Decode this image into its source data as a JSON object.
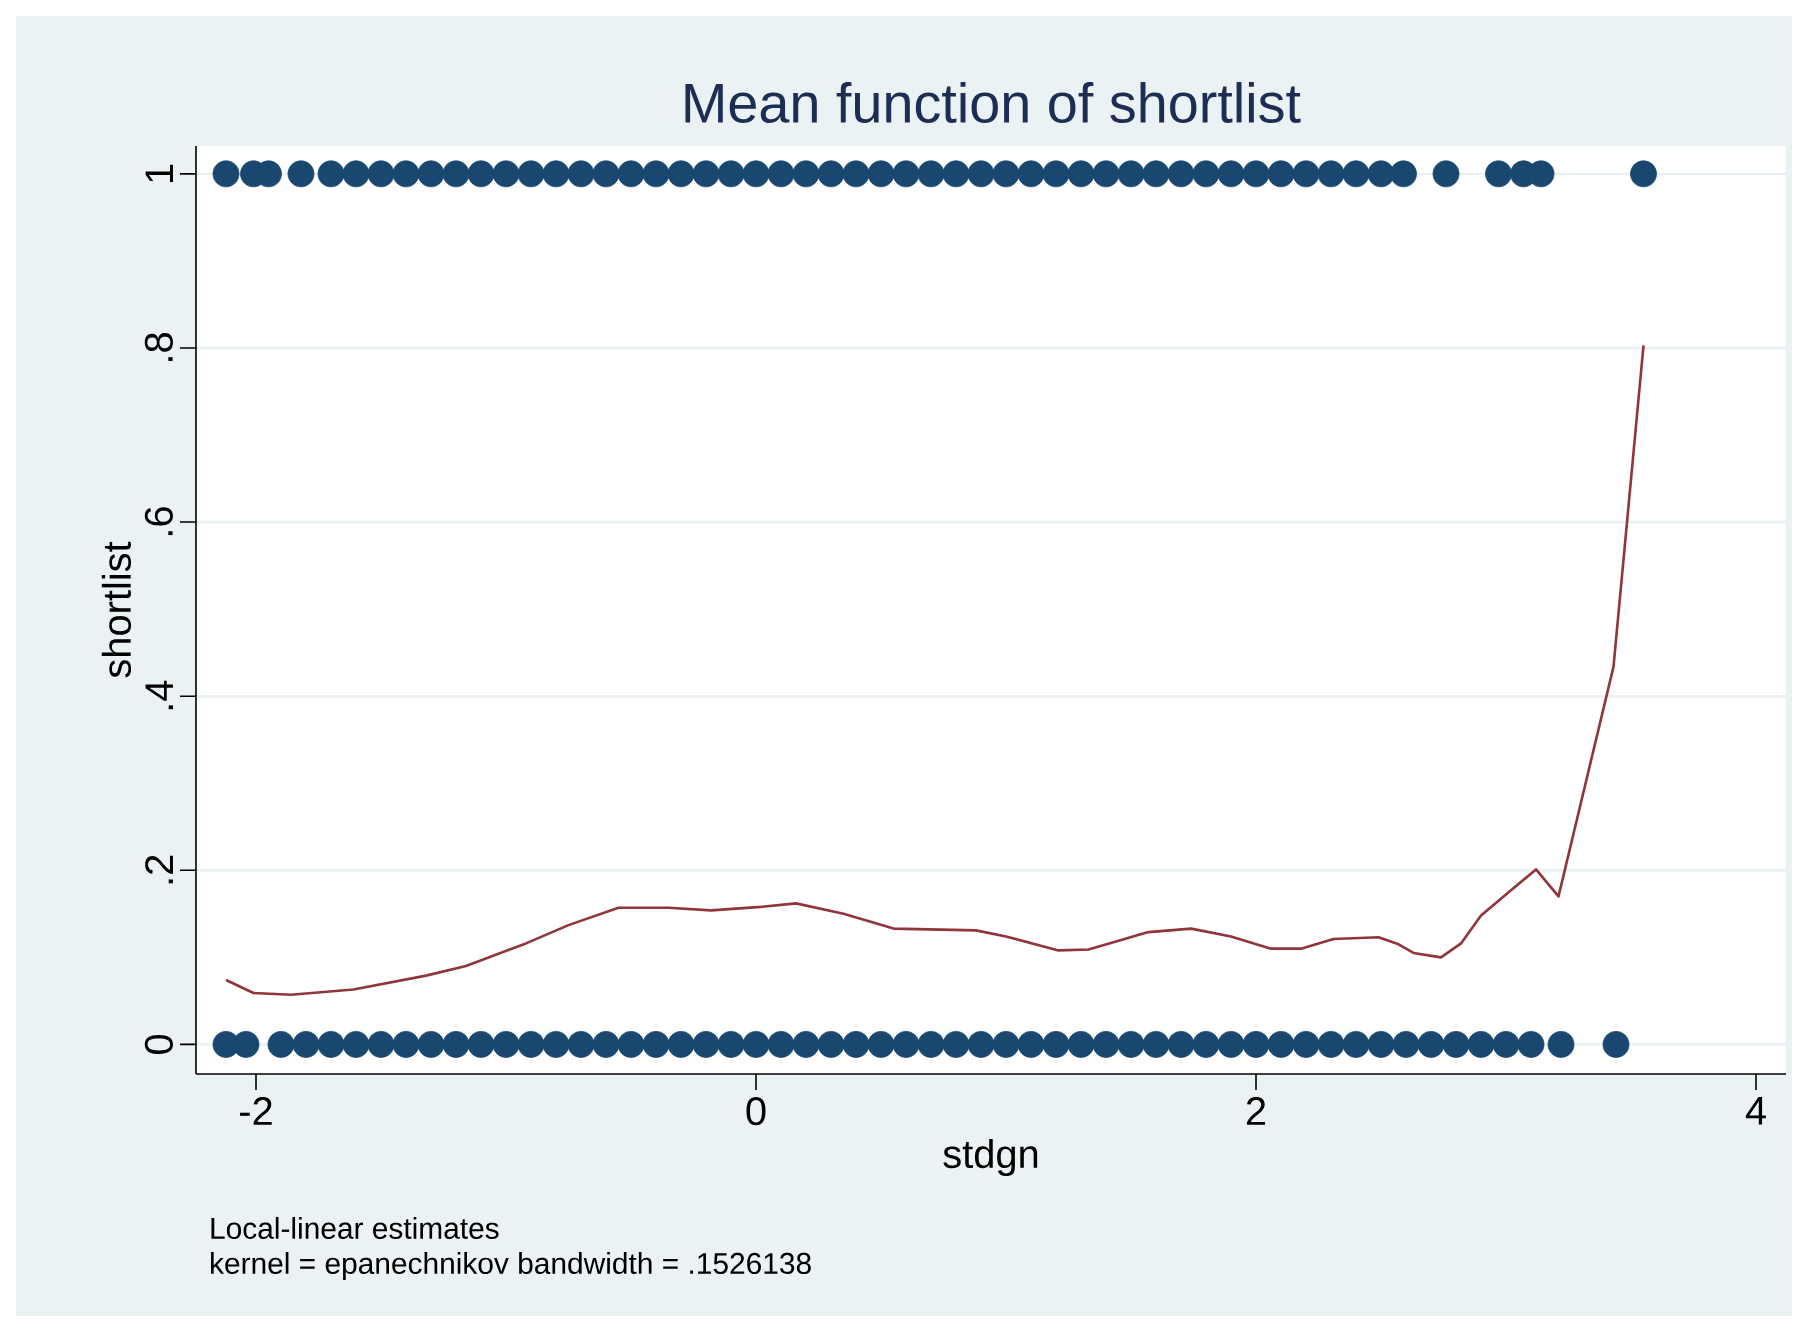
{
  "chart_data": {
    "type": "scatter",
    "title": "Mean function of shortlist",
    "xlabel": "stdgn",
    "ylabel": "shortlist",
    "annotations": [
      "Local-linear estimates",
      "kernel = epanechnikov bandwidth = .1526138"
    ],
    "xlim": [
      -2.24,
      4.12
    ],
    "ylim": [
      -0.034,
      1.032
    ],
    "xticks": [
      -2,
      0,
      2,
      4
    ],
    "yticks": [
      0,
      {
        "value": 0.2,
        "label": ".2"
      },
      {
        "value": 0.4,
        "label": ".4"
      },
      {
        "value": 0.6,
        "label": ".6"
      },
      {
        "value": 0.8,
        "label": ".8"
      },
      1
    ],
    "grid": "y",
    "marker": "circle",
    "series": [
      {
        "color": "#1a476f",
        "x": [
          -2.12,
          -2.01,
          -1.95,
          -1.82,
          -1.7,
          -1.6,
          -1.5,
          -1.4,
          -1.3,
          -1.2,
          -1.1,
          -1.0,
          -0.9,
          -0.8,
          -0.7,
          -0.6,
          -0.5,
          -0.4,
          -0.3,
          -0.2,
          -0.1,
          0.0,
          0.1,
          0.2,
          0.3,
          0.4,
          0.5,
          0.6,
          0.7,
          0.8,
          0.9,
          1.0,
          1.1,
          1.2,
          1.3,
          1.4,
          1.5,
          1.6,
          1.7,
          1.8,
          1.9,
          2.0,
          2.1,
          2.2,
          2.3,
          2.4,
          2.5,
          2.59,
          2.76,
          2.97,
          3.07,
          3.14,
          3.55,
          -2.12,
          -2.04,
          -1.9,
          -1.8,
          -1.7,
          -1.6,
          -1.5,
          -1.4,
          -1.3,
          -1.2,
          -1.1,
          -1.0,
          -0.9,
          -0.8,
          -0.7,
          -0.6,
          -0.5,
          -0.4,
          -0.3,
          -0.2,
          -0.1,
          0.0,
          0.1,
          0.2,
          0.3,
          0.4,
          0.5,
          0.6,
          0.7,
          0.8,
          0.9,
          1.0,
          1.1,
          1.2,
          1.3,
          1.4,
          1.5,
          1.6,
          1.7,
          1.8,
          1.9,
          2.0,
          2.1,
          2.2,
          2.3,
          2.4,
          2.5,
          2.6,
          2.7,
          2.8,
          2.9,
          3.0,
          3.1,
          3.22,
          3.44
        ],
        "values": [
          1,
          1,
          1,
          1,
          1,
          1,
          1,
          1,
          1,
          1,
          1,
          1,
          1,
          1,
          1,
          1,
          1,
          1,
          1,
          1,
          1,
          1,
          1,
          1,
          1,
          1,
          1,
          1,
          1,
          1,
          1,
          1,
          1,
          1,
          1,
          1,
          1,
          1,
          1,
          1,
          1,
          1,
          1,
          1,
          1,
          1,
          1,
          1,
          1,
          1,
          1,
          1,
          1,
          0,
          0,
          0,
          0,
          0,
          0,
          0,
          0,
          0,
          0,
          0,
          0,
          0,
          0,
          0,
          0,
          0,
          0,
          0,
          0,
          0,
          0,
          0,
          0,
          0,
          0,
          0,
          0,
          0,
          0,
          0,
          0,
          0,
          0,
          0,
          0,
          0,
          0,
          0,
          0,
          0,
          0,
          0,
          0,
          0,
          0,
          0,
          0,
          0,
          0,
          0,
          0,
          0,
          0,
          0
        ]
      },
      {
        "type": "line",
        "marker": "none",
        "color": "#90353b",
        "x": [
          -2.12,
          -2.01,
          -1.86,
          -1.61,
          -1.32,
          -1.16,
          -0.92,
          -0.75,
          -0.55,
          -0.35,
          -0.18,
          0.02,
          0.16,
          0.35,
          0.55,
          0.88,
          1.0,
          1.21,
          1.33,
          1.57,
          1.74,
          1.9,
          2.06,
          2.18,
          2.31,
          2.49,
          2.57,
          2.63,
          2.74,
          2.82,
          2.9,
          3.02,
          3.12,
          3.21,
          3.43,
          3.55
        ],
        "values": [
          0.074,
          0.059,
          0.057,
          0.063,
          0.079,
          0.09,
          0.116,
          0.137,
          0.157,
          0.157,
          0.154,
          0.158,
          0.162,
          0.15,
          0.133,
          0.131,
          0.124,
          0.108,
          0.109,
          0.129,
          0.133,
          0.124,
          0.11,
          0.11,
          0.121,
          0.123,
          0.115,
          0.105,
          0.1,
          0.116,
          0.148,
          0.177,
          0.201,
          0.17,
          0.434,
          0.803
        ]
      }
    ]
  }
}
